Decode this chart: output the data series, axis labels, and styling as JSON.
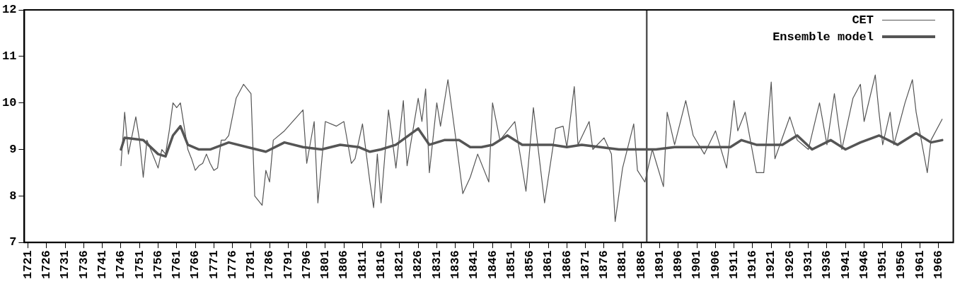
{
  "chart_data": {
    "type": "line",
    "xlim": [
      1720,
      1970
    ],
    "xticks": [
      1721,
      1726,
      1731,
      1736,
      1741,
      1746,
      1751,
      1756,
      1761,
      1766,
      1771,
      1776,
      1781,
      1786,
      1791,
      1796,
      1801,
      1806,
      1811,
      1816,
      1821,
      1826,
      1831,
      1836,
      1841,
      1846,
      1851,
      1856,
      1861,
      1866,
      1871,
      1876,
      1881,
      1886,
      1891,
      1896,
      1901,
      1906,
      1911,
      1916,
      1921,
      1926,
      1931,
      1936,
      1941,
      1946,
      1951,
      1956,
      1961,
      1966
    ],
    "ylim": [
      7,
      12
    ],
    "yticks": [
      7,
      8,
      9,
      10,
      11,
      12
    ],
    "grid": false,
    "legend": "top right",
    "marker": "none",
    "line_style": "solid",
    "ref_lines": [
      {
        "axis": "x",
        "value": 1887.5,
        "color": "#555555"
      }
    ],
    "series": [
      {
        "name": "CET",
        "color": "#555555",
        "x": [
          1746,
          1747,
          1748,
          1749,
          1750,
          1751,
          1752,
          1753,
          1755,
          1756,
          1757,
          1758,
          1759,
          1760,
          1761,
          1762,
          1763,
          1764,
          1765,
          1766,
          1767,
          1768,
          1769,
          1770,
          1771,
          1772,
          1773,
          1774,
          1775,
          1777,
          1779,
          1781,
          1782,
          1784,
          1785,
          1786,
          1787,
          1790,
          1795,
          1796,
          1798,
          1799,
          1801,
          1804,
          1806,
          1808,
          1809,
          1811,
          1813,
          1814,
          1815,
          1816,
          1818,
          1820,
          1822,
          1823,
          1826,
          1827,
          1828,
          1829,
          1831,
          1832,
          1834,
          1836,
          1838,
          1840,
          1842,
          1845,
          1846,
          1848,
          1852,
          1855,
          1857,
          1860,
          1863,
          1865,
          1866,
          1868,
          1869,
          1872,
          1873,
          1876,
          1878,
          1879,
          1881,
          1884,
          1885,
          1887,
          1889,
          1892,
          1893,
          1895,
          1898,
          1900,
          1903,
          1906,
          1909,
          1911,
          1912,
          1914,
          1917,
          1919,
          1921,
          1922,
          1926,
          1928,
          1931,
          1934,
          1936,
          1938,
          1940,
          1943,
          1945,
          1946,
          1949,
          1950,
          1951,
          1953,
          1954,
          1957,
          1959,
          1960,
          1963,
          1964,
          1967
        ],
        "values": [
          8.65,
          9.8,
          8.9,
          9.3,
          9.7,
          9.2,
          8.4,
          9.2,
          8.8,
          8.6,
          9.0,
          8.9,
          9.4,
          10.0,
          9.9,
          10.0,
          9.5,
          9.0,
          8.8,
          8.55,
          8.65,
          8.7,
          8.9,
          8.7,
          8.55,
          8.6,
          9.2,
          9.2,
          9.3,
          10.1,
          10.4,
          10.2,
          8.0,
          7.8,
          8.55,
          8.3,
          9.2,
          9.4,
          9.85,
          8.7,
          9.6,
          7.85,
          9.6,
          9.5,
          9.6,
          8.7,
          8.8,
          9.55,
          8.3,
          7.75,
          8.9,
          7.85,
          9.85,
          8.6,
          10.05,
          8.65,
          10.1,
          9.6,
          10.3,
          8.5,
          10.0,
          9.5,
          10.5,
          9.3,
          8.05,
          8.4,
          8.9,
          8.3,
          10.0,
          9.2,
          9.6,
          8.1,
          9.9,
          7.85,
          9.45,
          9.5,
          9.05,
          10.35,
          9.1,
          9.6,
          9.0,
          9.25,
          8.9,
          7.45,
          8.6,
          9.55,
          8.55,
          8.3,
          9.0,
          8.2,
          9.8,
          9.1,
          10.05,
          9.3,
          8.9,
          9.4,
          8.6,
          10.05,
          9.4,
          9.8,
          8.5,
          8.5,
          10.45,
          8.8,
          9.7,
          9.2,
          9.0,
          10.0,
          9.1,
          10.2,
          9.0,
          10.1,
          10.4,
          9.6,
          10.6,
          9.8,
          9.1,
          9.8,
          9.1,
          10.0,
          10.5,
          9.8,
          8.5,
          9.2,
          9.65
        ]
      },
      {
        "name": "Ensemble model",
        "color": "#555555",
        "x": [
          1746,
          1747,
          1752,
          1756,
          1758,
          1760,
          1762,
          1764,
          1767,
          1770,
          1775,
          1780,
          1785,
          1790,
          1795,
          1800,
          1805,
          1810,
          1813,
          1816,
          1820,
          1826,
          1829,
          1833,
          1837,
          1840,
          1843,
          1846,
          1850,
          1854,
          1858,
          1862,
          1866,
          1870,
          1875,
          1880,
          1885,
          1890,
          1895,
          1900,
          1905,
          1910,
          1913,
          1917,
          1920,
          1924,
          1928,
          1932,
          1937,
          1941,
          1945,
          1950,
          1955,
          1960,
          1964,
          1967
        ],
        "values": [
          9.0,
          9.25,
          9.2,
          8.9,
          8.85,
          9.3,
          9.5,
          9.1,
          9.0,
          9.0,
          9.15,
          9.05,
          8.95,
          9.15,
          9.05,
          9.0,
          9.1,
          9.05,
          8.95,
          9.0,
          9.1,
          9.45,
          9.1,
          9.2,
          9.2,
          9.05,
          9.05,
          9.1,
          9.3,
          9.1,
          9.1,
          9.1,
          9.05,
          9.1,
          9.05,
          9.0,
          9.0,
          9.0,
          9.05,
          9.05,
          9.05,
          9.05,
          9.2,
          9.1,
          9.1,
          9.1,
          9.3,
          9.0,
          9.2,
          9.0,
          9.15,
          9.3,
          9.1,
          9.35,
          9.15,
          9.2
        ]
      }
    ]
  }
}
